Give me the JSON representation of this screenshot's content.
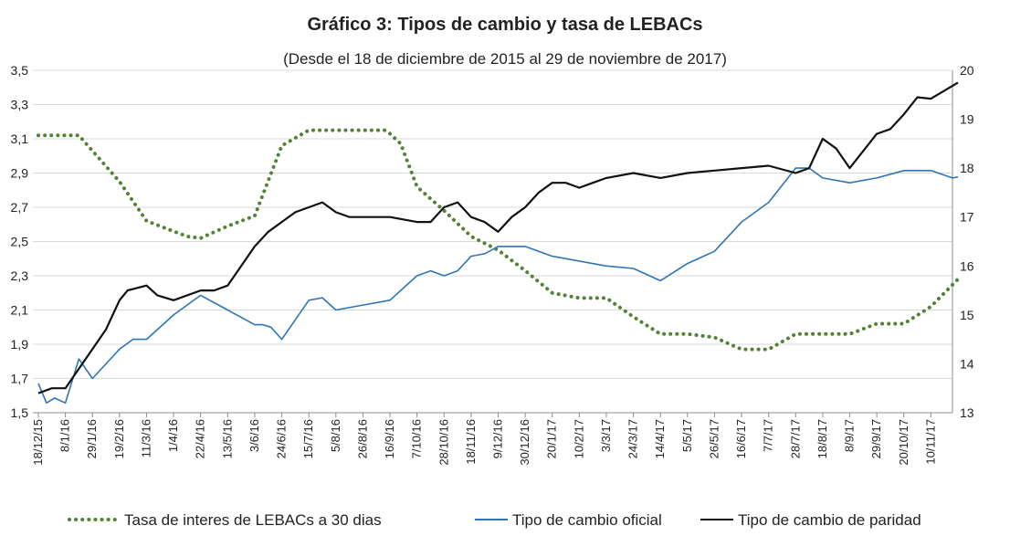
{
  "chart_data": {
    "type": "line",
    "title": "Gráfico 3: Tipos de cambio y tasa de LEBACs",
    "subtitle": "(Desde el 18 de diciembre de 2015 al 29 de noviembre de 2017)",
    "left_axis": {
      "min": 1.5,
      "max": 3.5,
      "ticks": [
        "1,5",
        "1,7",
        "1,9",
        "2,1",
        "2,3",
        "2,5",
        "2,7",
        "2,9",
        "3,1",
        "3,3",
        "3,5"
      ]
    },
    "right_axis": {
      "min": 13,
      "max": 20,
      "ticks": [
        "13",
        "14",
        "15",
        "16",
        "17",
        "18",
        "19",
        "20"
      ]
    },
    "x_ticks": [
      "18/12/15",
      "8/1/16",
      "29/1/16",
      "19/2/16",
      "11/3/16",
      "1/4/16",
      "22/4/16",
      "13/5/16",
      "3/6/16",
      "24/6/16",
      "15/7/16",
      "5/8/16",
      "26/8/16",
      "16/9/16",
      "7/10/16",
      "28/10/16",
      "18/11/16",
      "9/12/16",
      "30/12/16",
      "20/1/17",
      "10/2/17",
      "3/3/17",
      "24/3/17",
      "14/4/17",
      "5/5/17",
      "26/5/17",
      "16/6/17",
      "7/7/17",
      "28/7/17",
      "18/8/17",
      "8/9/17",
      "29/9/17",
      "20/10/17",
      "10/11/17"
    ],
    "grid": true,
    "legend_position": "bottom",
    "series": [
      {
        "name": "Tasa de interes de LEBACs a 30 dias",
        "axis": "left",
        "color": "#548235",
        "style": "dotted",
        "x": [
          0,
          1.5,
          3,
          4,
          5,
          5.5,
          6,
          7,
          8,
          9,
          10,
          11,
          12,
          12.8,
          13,
          13.4,
          14,
          15,
          16,
          17,
          18,
          19,
          20,
          21,
          22,
          23,
          24,
          25,
          26,
          27,
          28,
          29,
          30,
          31,
          32,
          33,
          34
        ],
        "y": [
          3.12,
          3.12,
          2.85,
          2.62,
          2.56,
          2.53,
          2.52,
          2.59,
          2.65,
          3.06,
          3.15,
          3.15,
          3.15,
          3.15,
          3.13,
          3.07,
          2.82,
          2.68,
          2.53,
          2.45,
          2.33,
          2.2,
          2.17,
          2.17,
          2.06,
          1.96,
          1.96,
          1.94,
          1.87,
          1.87,
          1.96,
          1.96,
          1.96,
          2.02,
          2.02,
          2.12,
          2.28
        ]
      },
      {
        "name": "Tipo de cambio oficial",
        "axis": "right",
        "color": "#2E75B6",
        "style": "solid",
        "x": [
          0,
          0.3,
          0.6,
          1,
          1.5,
          2,
          3,
          3.5,
          4,
          5,
          6,
          7,
          8,
          8.3,
          8.6,
          9,
          10,
          10.5,
          11,
          12,
          13,
          14,
          14.5,
          15,
          15.5,
          16,
          16.5,
          17,
          18,
          19,
          20,
          21,
          22,
          23,
          24,
          25,
          26,
          27,
          28,
          28.5,
          29,
          30,
          31,
          32,
          33,
          33.8,
          34
        ],
        "y": [
          13.6,
          13.2,
          13.3,
          13.2,
          14.1,
          13.7,
          14.3,
          14.5,
          14.5,
          15.0,
          15.4,
          15.1,
          14.8,
          14.8,
          14.75,
          14.5,
          15.3,
          15.35,
          15.1,
          15.2,
          15.3,
          15.8,
          15.9,
          15.8,
          15.9,
          16.2,
          16.25,
          16.4,
          16.4,
          16.2,
          16.1,
          16.0,
          15.95,
          15.7,
          16.05,
          16.3,
          16.9,
          17.3,
          18.0,
          18.0,
          17.8,
          17.7,
          17.8,
          17.95,
          17.95,
          17.8,
          17.82
        ]
      },
      {
        "name": "Tipo de cambio de paridad",
        "axis": "right",
        "color": "#111111",
        "style": "solid",
        "x": [
          0,
          0.5,
          1,
          2,
          2.5,
          3,
          3.3,
          4,
          4.4,
          5,
          6,
          6.5,
          7,
          8,
          8.5,
          9,
          9.5,
          10,
          10.5,
          11,
          11.5,
          12,
          13,
          14,
          14.5,
          15,
          15.5,
          16,
          16.5,
          17,
          17.5,
          18,
          18.5,
          19,
          19.5,
          20,
          20.5,
          21,
          22,
          23,
          24,
          25,
          26,
          27,
          28,
          28.5,
          29,
          29.5,
          30,
          31,
          31.5,
          32,
          32.5,
          33,
          34
        ],
        "y": [
          13.4,
          13.5,
          13.5,
          14.3,
          14.7,
          15.3,
          15.5,
          15.6,
          15.4,
          15.3,
          15.5,
          15.5,
          15.6,
          16.4,
          16.7,
          16.9,
          17.1,
          17.2,
          17.3,
          17.1,
          17.0,
          17.0,
          17.0,
          16.9,
          16.9,
          17.2,
          17.3,
          17.0,
          16.9,
          16.7,
          17.0,
          17.2,
          17.5,
          17.7,
          17.7,
          17.6,
          17.7,
          17.8,
          17.9,
          17.8,
          17.9,
          17.95,
          18.0,
          18.05,
          17.9,
          18.0,
          18.6,
          18.4,
          18.0,
          18.7,
          18.8,
          19.1,
          19.45,
          19.42,
          19.75
        ]
      }
    ]
  }
}
